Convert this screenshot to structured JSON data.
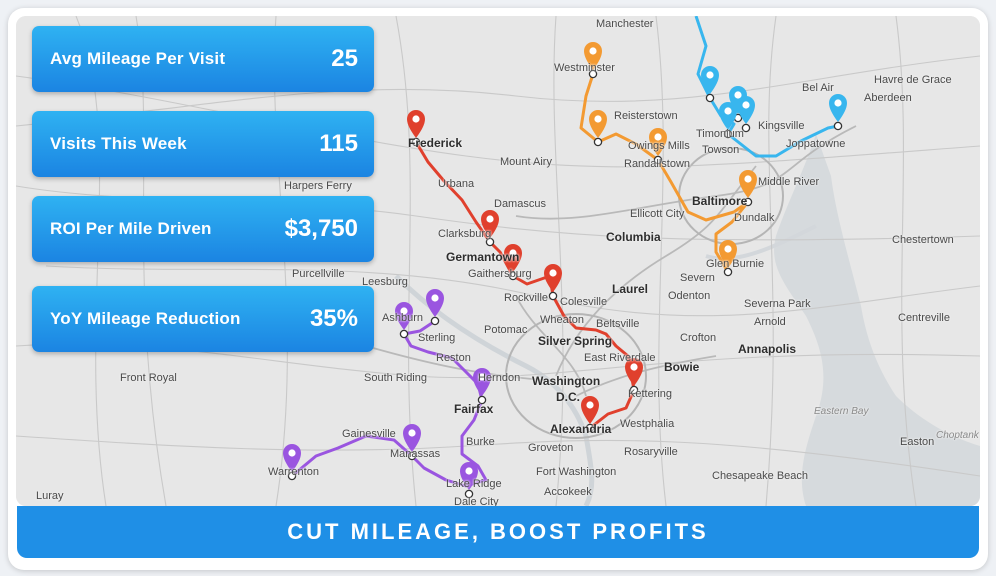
{
  "stats": [
    {
      "label": "Avg Mileage Per Visit",
      "value": "25"
    },
    {
      "label": "Visits This Week",
      "value": "115"
    },
    {
      "label": "ROI Per Mile Driven",
      "value": "$3,750"
    },
    {
      "label": "YoY Mileage Reduction",
      "value": "35%"
    }
  ],
  "banner": "CUT MILEAGE, BOOST PROFITS",
  "places": {
    "manchester": "Manchester",
    "westminster": "Westminster",
    "reisterstown": "Reisterstown",
    "owings_mills": "Owings Mills",
    "randallstown": "Randallstown",
    "bel_air": "Bel Air",
    "havre_de_grace": "Havre de Grace",
    "aberdeen": "Aberdeen",
    "timonium": "Timonium",
    "towson": "Towson",
    "kingsville": "Kingsville",
    "joppatowne": "Joppatowne",
    "middle_river": "Middle River",
    "baltimore": "Baltimore",
    "dundalk": "Dundalk",
    "ellicott_city": "Ellicott City",
    "frederick": "Frederick",
    "mount_airy": "Mount Airy",
    "harpers_ferry": "Harpers Ferry",
    "urbana": "Urbana",
    "damascus": "Damascus",
    "clarksburg": "Clarksburg",
    "germantown": "Germantown",
    "gaithersburg": "Gaithersburg",
    "columbia": "Columbia",
    "chestertown": "Chestertown",
    "glen_burnie": "Glen Burnie",
    "severn": "Severn",
    "purcellville": "Purcellville",
    "leesburg": "Leesburg",
    "rockville": "Rockville",
    "colesville": "Colesville",
    "laurel": "Laurel",
    "odenton": "Odenton",
    "severna_park": "Severna Park",
    "arnold": "Arnold",
    "ashburn": "Ashburn",
    "sterling": "Sterling",
    "wheaton": "Wheaton",
    "beltsville": "Beltsville",
    "centreville_md": "Centreville",
    "potomac": "Potomac",
    "silver_spring": "Silver Spring",
    "crofton": "Crofton",
    "annapolis": "Annapolis",
    "reston": "Reston",
    "east_riverdale": "East Riverdale",
    "bowie": "Bowie",
    "front_royal": "Front Royal",
    "south_riding": "South Riding",
    "herndon": "Herndon",
    "washington": "Washington",
    "dc": "D.C.",
    "kettering": "Kettering",
    "fairfax": "Fairfax",
    "eastern_bay": "Eastern Bay",
    "alexandria": "Alexandria",
    "westphalia": "Westphalia",
    "easton": "Easton",
    "choptank_river": "Choptank River",
    "gainesville": "Gainesville",
    "burke": "Burke",
    "groveton": "Groveton",
    "rosaryville": "Rosaryville",
    "manassas": "Manassas",
    "warrenton": "Warrenton",
    "fort_washington": "Fort Washington",
    "chesapeake_beach": "Chesapeake Beach",
    "lake_ridge": "Lake Ridge",
    "luray": "Luray",
    "accokeek": "Accokeek",
    "dale_city": "Dale City"
  },
  "route_colors": {
    "red": "#e0402d",
    "orange": "#f39a32",
    "purple": "#9a55e0",
    "blue": "#38b6ee"
  }
}
